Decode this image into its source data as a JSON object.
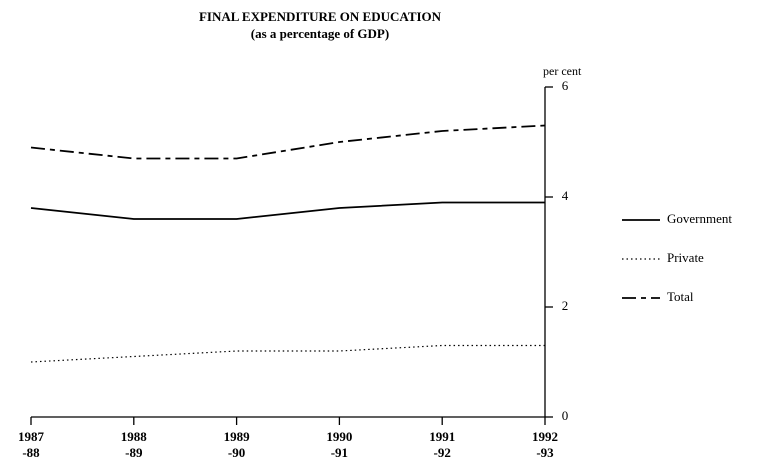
{
  "chart_data": {
    "type": "line",
    "title": [
      "FINAL EXPENDITURE ON EDUCATION",
      "(as a percentage of GDP)"
    ],
    "y_label": "per cent",
    "categories": [
      [
        "1987",
        "-88"
      ],
      [
        "1988",
        "-89"
      ],
      [
        "1989",
        "-90"
      ],
      [
        "1990",
        "-91"
      ],
      [
        "1991",
        "-92"
      ],
      [
        "1992",
        "-93"
      ]
    ],
    "series": [
      {
        "name": "Government",
        "color": "#000000",
        "style": "solid",
        "values": [
          3.8,
          3.6,
          3.6,
          3.8,
          3.9,
          3.9
        ]
      },
      {
        "name": "Private",
        "color": "#000000",
        "style": "dotted",
        "values": [
          1.0,
          1.1,
          1.2,
          1.2,
          1.3,
          1.3
        ]
      },
      {
        "name": "Total",
        "color": "#000000",
        "style": "dashed",
        "values": [
          4.9,
          4.7,
          4.7,
          5.0,
          5.2,
          5.3
        ]
      }
    ],
    "ylim": [
      0,
      6
    ],
    "yticks": [
      0,
      2,
      4,
      6
    ],
    "y_axis_side": "right",
    "legend": "right",
    "grid": false
  }
}
